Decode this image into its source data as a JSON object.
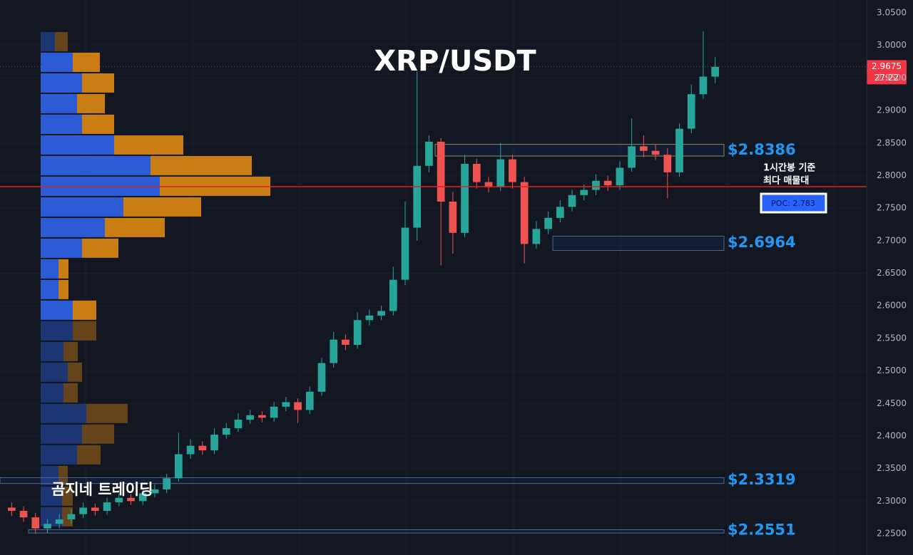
{
  "chart_data": {
    "type": "candlestick",
    "title": "XRP/USDT",
    "watermark": "곰지네 트레이딩",
    "ylim": [
      2.2172,
      3.0697
    ],
    "yticks": [
      {
        "value": 2.25,
        "label": "2.2500"
      },
      {
        "value": 2.3,
        "label": "2.3000"
      },
      {
        "value": 2.35,
        "label": "2.3500"
      },
      {
        "value": 2.4,
        "label": "2.4000"
      },
      {
        "value": 2.45,
        "label": "2.4500"
      },
      {
        "value": 2.5,
        "label": "2.5000"
      },
      {
        "value": 2.55,
        "label": "2.5500"
      },
      {
        "value": 2.6,
        "label": "2.6000"
      },
      {
        "value": 2.65,
        "label": "2.6500"
      },
      {
        "value": 2.7,
        "label": "2.7000"
      },
      {
        "value": 2.75,
        "label": "2.7500"
      },
      {
        "value": 2.8,
        "label": "2.8000"
      },
      {
        "value": 2.85,
        "label": "2.8500"
      },
      {
        "value": 2.9,
        "label": "2.9000"
      },
      {
        "value": 2.95,
        "label": "2.9500"
      },
      {
        "value": 3.0,
        "label": "3.0000"
      },
      {
        "value": 3.05,
        "label": "3.0500"
      }
    ],
    "up_color": "#26a69a",
    "down_color": "#ef5350",
    "open": [
      2.29,
      2.285,
      2.275,
      2.258,
      2.265,
      2.272,
      2.28,
      2.29,
      2.285,
      2.298,
      2.305,
      2.3,
      2.312,
      2.318,
      2.335,
      2.372,
      2.385,
      2.378,
      2.402,
      2.412,
      2.425,
      2.432,
      2.428,
      2.445,
      2.452,
      2.44,
      2.468,
      2.512,
      2.548,
      2.54,
      2.578,
      2.585,
      2.592,
      2.64,
      2.72,
      2.815,
      2.852,
      2.76,
      2.712,
      2.818,
      2.79,
      2.782,
      2.825,
      2.79,
      2.695,
      2.718,
      2.735,
      2.752,
      2.77,
      2.778,
      2.792,
      2.785,
      2.812,
      2.845,
      2.838,
      2.832,
      2.805,
      2.872,
      2.925,
      2.952
    ],
    "high": [
      2.298,
      2.292,
      2.282,
      2.272,
      2.28,
      2.288,
      2.298,
      2.296,
      2.305,
      2.312,
      2.311,
      2.32,
      2.326,
      2.342,
      2.405,
      2.395,
      2.392,
      2.412,
      2.42,
      2.435,
      2.44,
      2.438,
      2.452,
      2.46,
      2.458,
      2.476,
      2.52,
      2.56,
      2.556,
      2.59,
      2.594,
      2.6,
      2.66,
      2.76,
      2.96,
      2.862,
      2.858,
      2.775,
      2.832,
      2.826,
      2.798,
      2.85,
      2.832,
      2.798,
      2.73,
      2.745,
      2.762,
      2.778,
      2.786,
      2.802,
      2.8,
      2.822,
      2.888,
      2.862,
      2.848,
      2.842,
      2.88,
      2.94,
      3.022,
      2.982
    ],
    "low": [
      2.277,
      2.268,
      2.25,
      2.251,
      2.258,
      2.265,
      2.274,
      2.278,
      2.279,
      2.292,
      2.294,
      2.294,
      2.306,
      2.312,
      2.33,
      2.365,
      2.371,
      2.372,
      2.396,
      2.406,
      2.419,
      2.421,
      2.422,
      2.438,
      2.42,
      2.434,
      2.462,
      2.505,
      2.532,
      2.534,
      2.57,
      2.578,
      2.585,
      2.632,
      2.7,
      2.805,
      2.662,
      2.68,
      2.705,
      2.78,
      2.774,
      2.776,
      2.78,
      2.665,
      2.688,
      2.71,
      2.728,
      2.745,
      2.762,
      2.77,
      2.776,
      2.778,
      2.806,
      2.828,
      2.824,
      2.765,
      2.798,
      2.865,
      2.918,
      2.942
    ],
    "close": [
      2.285,
      2.275,
      2.258,
      2.265,
      2.272,
      2.28,
      2.29,
      2.285,
      2.298,
      2.305,
      2.3,
      2.312,
      2.318,
      2.335,
      2.372,
      2.385,
      2.378,
      2.402,
      2.412,
      2.425,
      2.432,
      2.428,
      2.445,
      2.452,
      2.44,
      2.468,
      2.512,
      2.548,
      2.54,
      2.578,
      2.585,
      2.592,
      2.64,
      2.72,
      2.815,
      2.852,
      2.76,
      2.712,
      2.818,
      2.79,
      2.782,
      2.825,
      2.79,
      2.695,
      2.718,
      2.735,
      2.752,
      2.77,
      2.778,
      2.792,
      2.785,
      2.812,
      2.845,
      2.838,
      2.832,
      2.805,
      2.872,
      2.925,
      2.952,
      2.967
    ],
    "last_price": 2.9675,
    "countdown": "27:22",
    "levels": [
      {
        "value": 2.8386,
        "label": "$2.8386",
        "low": 2.83,
        "high": 2.848
      },
      {
        "value": 2.6964,
        "label": "$2.6964",
        "low": 2.685,
        "high": 2.707
      },
      {
        "value": 2.3319,
        "label": "$2.3319",
        "low": 2.327,
        "high": 2.336
      },
      {
        "value": 2.2551,
        "label": "$2.2551",
        "low": 2.251,
        "high": 2.256
      }
    ],
    "poc": {
      "value": 2.783,
      "label": "POC: 2.783",
      "note": [
        "1시간봉 기준",
        "최다 매물대"
      ]
    },
    "volume_profile": {
      "bin_edges": [
        3.0216,
        2.9899,
        2.9581,
        2.9264,
        2.8947,
        2.8629,
        2.8312,
        2.7995,
        2.7677,
        2.736,
        2.7043,
        2.6726,
        2.6408,
        2.6091,
        2.5774,
        2.5456,
        2.5139,
        2.4822,
        2.4504,
        2.4187,
        2.387,
        2.3552,
        2.3235,
        2.2918,
        2.26
      ],
      "buy": [
        20,
        45,
        58,
        51,
        58,
        103,
        154,
        167,
        116,
        90,
        58,
        25,
        25,
        45,
        45,
        32,
        38,
        32,
        64,
        58,
        51,
        25,
        30,
        30
      ],
      "sell": [
        18,
        38,
        45,
        39,
        45,
        97,
        142,
        155,
        109,
        84,
        51,
        14,
        14,
        33,
        33,
        20,
        20,
        20,
        58,
        45,
        33,
        13,
        15,
        15
      ],
      "buy_color": "#2c5bd6",
      "sell_color": "#c97d12",
      "value_area": [
        2.5774,
        2.9899
      ]
    }
  }
}
